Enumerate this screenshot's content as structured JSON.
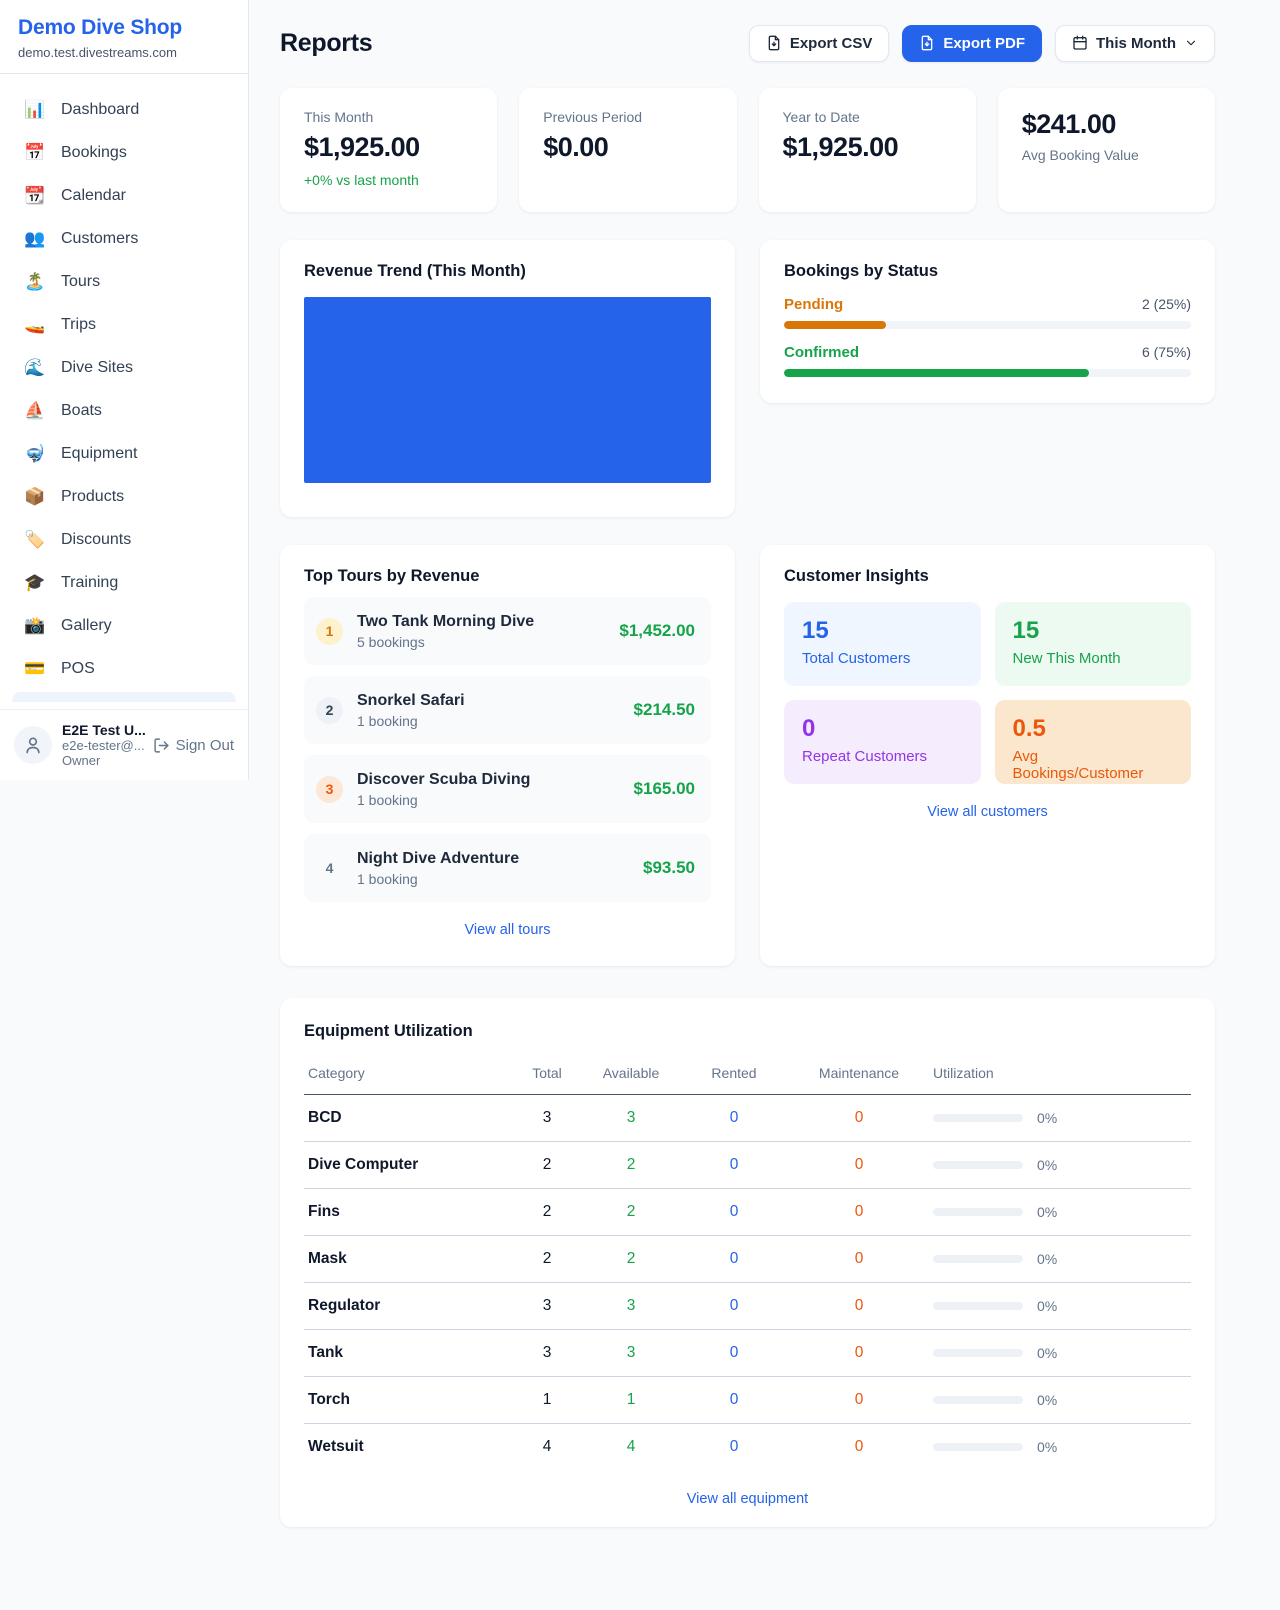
{
  "colors": {
    "accent": "#2563eb",
    "green": "#16a34a",
    "amber": "#d97706",
    "orange": "#ea580c",
    "purple": "#9333ea"
  },
  "sidebar": {
    "brand": {
      "name": "Demo Dive Shop",
      "domain": "demo.test.divestreams.com"
    },
    "nav": [
      {
        "icon": "📊",
        "label": "Dashboard"
      },
      {
        "icon": "📅",
        "label": "Bookings"
      },
      {
        "icon": "📆",
        "label": "Calendar"
      },
      {
        "icon": "👥",
        "label": "Customers"
      },
      {
        "icon": "🏝️",
        "label": "Tours"
      },
      {
        "icon": "🚤",
        "label": "Trips"
      },
      {
        "icon": "🌊",
        "label": "Dive Sites"
      },
      {
        "icon": "⛵",
        "label": "Boats"
      },
      {
        "icon": "🤿",
        "label": "Equipment"
      },
      {
        "icon": "📦",
        "label": "Products"
      },
      {
        "icon": "🏷️",
        "label": "Discounts"
      },
      {
        "icon": "🎓",
        "label": "Training"
      },
      {
        "icon": "📸",
        "label": "Gallery"
      },
      {
        "icon": "💳",
        "label": "POS"
      }
    ],
    "user": {
      "name": "E2E Test U...",
      "email": "e2e-tester@...",
      "role": "Owner",
      "sign_out": "Sign Out"
    }
  },
  "header": {
    "title": "Reports",
    "export_csv": "Export CSV",
    "export_pdf": "Export PDF",
    "period": "This Month"
  },
  "stats": [
    {
      "label": "This Month",
      "value": "$1,925.00",
      "delta": "+0% vs last month"
    },
    {
      "label": "Previous Period",
      "value": "$0.00"
    },
    {
      "label": "Year to Date",
      "value": "$1,925.00"
    },
    {
      "label": "Avg Booking Value",
      "value": "$241.00"
    }
  ],
  "revenue_trend": {
    "title": "Revenue Trend (This Month)"
  },
  "bookings_by_status": {
    "title": "Bookings by Status",
    "rows": [
      {
        "label": "Pending",
        "value": "2 (25%)",
        "pct": 25
      },
      {
        "label": "Confirmed",
        "value": "6 (75%)",
        "pct": 75
      }
    ]
  },
  "top_tours": {
    "title": "Top Tours by Revenue",
    "items": [
      {
        "rank": "1",
        "name": "Two Tank Morning Dive",
        "bookings": "5 bookings",
        "amount": "$1,452.00"
      },
      {
        "rank": "2",
        "name": "Snorkel Safari",
        "bookings": "1 booking",
        "amount": "$214.50"
      },
      {
        "rank": "3",
        "name": "Discover Scuba Diving",
        "bookings": "1 booking",
        "amount": "$165.00"
      },
      {
        "rank": "4",
        "name": "Night Dive Adventure",
        "bookings": "1 booking",
        "amount": "$93.50"
      }
    ],
    "view_all": "View all tours"
  },
  "customer_insights": {
    "title": "Customer Insights",
    "boxes": [
      {
        "value": "15",
        "label": "Total Customers"
      },
      {
        "value": "15",
        "label": "New This Month"
      },
      {
        "value": "0",
        "label": "Repeat Customers"
      },
      {
        "value": "0.5",
        "label": "Avg Bookings/Customer"
      }
    ],
    "view_all": "View all customers"
  },
  "equipment": {
    "title": "Equipment Utilization",
    "columns": [
      "Category",
      "Total",
      "Available",
      "Rented",
      "Maintenance",
      "Utilization"
    ],
    "rows": [
      {
        "category": "BCD",
        "total": "3",
        "available": "3",
        "rented": "0",
        "maintenance": "0",
        "utilization": "0%",
        "util_pct": 0
      },
      {
        "category": "Dive Computer",
        "total": "2",
        "available": "2",
        "rented": "0",
        "maintenance": "0",
        "utilization": "0%",
        "util_pct": 0
      },
      {
        "category": "Fins",
        "total": "2",
        "available": "2",
        "rented": "0",
        "maintenance": "0",
        "utilization": "0%",
        "util_pct": 0
      },
      {
        "category": "Mask",
        "total": "2",
        "available": "2",
        "rented": "0",
        "maintenance": "0",
        "utilization": "0%",
        "util_pct": 0
      },
      {
        "category": "Regulator",
        "total": "3",
        "available": "3",
        "rented": "0",
        "maintenance": "0",
        "utilization": "0%",
        "util_pct": 0
      },
      {
        "category": "Tank",
        "total": "3",
        "available": "3",
        "rented": "0",
        "maintenance": "0",
        "utilization": "0%",
        "util_pct": 0
      },
      {
        "category": "Torch",
        "total": "1",
        "available": "1",
        "rented": "0",
        "maintenance": "0",
        "utilization": "0%",
        "util_pct": 0
      },
      {
        "category": "Wetsuit",
        "total": "4",
        "available": "4",
        "rented": "0",
        "maintenance": "0",
        "utilization": "0%",
        "util_pct": 0
      }
    ],
    "view_all": "View all equipment"
  },
  "chart_data": [
    {
      "type": "bar",
      "title": "Revenue Trend (This Month)",
      "categories": [
        "This Month"
      ],
      "values": [
        1925
      ],
      "bar_color": "#2563eb",
      "note": "single full-area bar"
    },
    {
      "type": "bar",
      "title": "Bookings by Status",
      "categories": [
        "Pending",
        "Confirmed"
      ],
      "values": [
        2,
        6
      ],
      "percentages": [
        25,
        75
      ],
      "colors": [
        "#d97706",
        "#16a34a"
      ]
    }
  ]
}
